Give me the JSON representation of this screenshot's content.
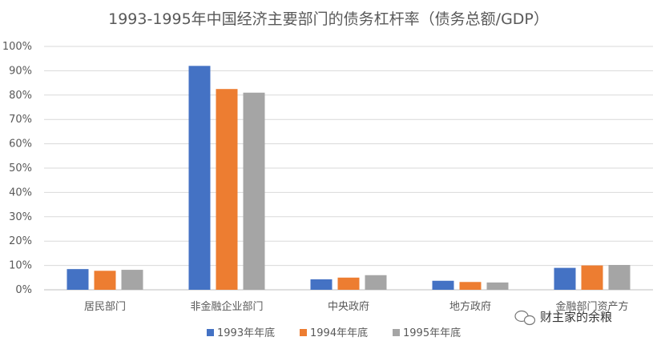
{
  "chart_data": {
    "type": "bar",
    "title": "1993-1995年中国经济主要部门的债务杠杆率（债务总额/GDP）",
    "categories": [
      "居民部门",
      "非金融企业部门",
      "中央政府",
      "地方政府",
      "金融部门资产方"
    ],
    "series": [
      {
        "name": "1993年年底",
        "color": "#4472C4",
        "values": [
          8.5,
          92,
          4.3,
          3.7,
          9
        ]
      },
      {
        "name": "1994年年底",
        "color": "#ED7D31",
        "values": [
          7.8,
          82.5,
          5,
          3.2,
          10
        ]
      },
      {
        "name": "1995年年底",
        "color": "#A5A5A5",
        "values": [
          8.2,
          81,
          6,
          3,
          10.2
        ]
      }
    ],
    "ylim": [
      0,
      100
    ],
    "yticks": [
      "0%",
      "10%",
      "20%",
      "30%",
      "40%",
      "50%",
      "60%",
      "70%",
      "80%",
      "90%",
      "100%"
    ],
    "grid": true,
    "legend_position": "bottom"
  },
  "watermark": {
    "text": "财主家的余粮",
    "icon": "wechat-icon"
  }
}
